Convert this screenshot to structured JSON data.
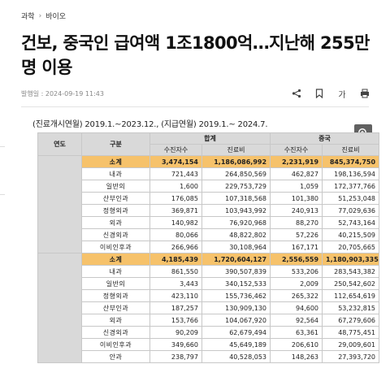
{
  "breadcrumb": {
    "section": "과학",
    "subsection": "바이오"
  },
  "headline": "건보, 중국인 급여액 1조1800억…지난해 255만명 이용",
  "meta": {
    "published": "발행일 : 2024-09-19 11:43"
  },
  "toolbar": {
    "font_size_label": "가"
  },
  "colors": {
    "accent_total_row": "#f6c26b",
    "header_bg": "#d9d9d9"
  },
  "table": {
    "period_caption": "(진료개시연월) 2019.1.~2023.12., (지급연월) 2019.1.~ 2024.7.",
    "headers": {
      "year": "연도",
      "category": "구분",
      "total": "합계",
      "chinese": "중국",
      "patients": "수진자수",
      "cost": "진료비"
    },
    "groups": [
      {
        "year": "",
        "rows": [
          {
            "cat": "소계",
            "total_patients": "3,474,154",
            "total_cost": "1,186,086,992",
            "cn_patients": "2,231,919",
            "cn_cost": "845,374,750",
            "is_total": true
          },
          {
            "cat": "내과",
            "total_patients": "721,443",
            "total_cost": "264,850,569",
            "cn_patients": "462,827",
            "cn_cost": "198,136,594"
          },
          {
            "cat": "일반의",
            "total_patients": "1,600",
            "total_cost": "229,753,729",
            "cn_patients": "1,059",
            "cn_cost": "172,377,766"
          },
          {
            "cat": "산부인과",
            "total_patients": "176,085",
            "total_cost": "107,318,568",
            "cn_patients": "101,380",
            "cn_cost": "51,253,048"
          },
          {
            "cat": "정형외과",
            "total_patients": "369,871",
            "total_cost": "103,943,992",
            "cn_patients": "240,913",
            "cn_cost": "77,029,636"
          },
          {
            "cat": "외과",
            "total_patients": "140,982",
            "total_cost": "76,920,968",
            "cn_patients": "88,270",
            "cn_cost": "52,743,164"
          },
          {
            "cat": "신경외과",
            "total_patients": "80,066",
            "total_cost": "48,822,802",
            "cn_patients": "57,226",
            "cn_cost": "40,215,509"
          },
          {
            "cat": "이비인후과",
            "total_patients": "266,966",
            "total_cost": "30,108,964",
            "cn_patients": "167,171",
            "cn_cost": "20,705,665"
          }
        ]
      },
      {
        "year": "",
        "rows": [
          {
            "cat": "소계",
            "total_patients": "4,185,439",
            "total_cost": "1,720,604,127",
            "cn_patients": "2,556,559",
            "cn_cost": "1,180,903,335",
            "is_total": true
          },
          {
            "cat": "내과",
            "total_patients": "861,550",
            "total_cost": "390,507,839",
            "cn_patients": "533,206",
            "cn_cost": "283,543,382"
          },
          {
            "cat": "일반의",
            "total_patients": "3,443",
            "total_cost": "340,152,533",
            "cn_patients": "2,009",
            "cn_cost": "250,542,602"
          },
          {
            "cat": "정형외과",
            "total_patients": "423,110",
            "total_cost": "155,736,462",
            "cn_patients": "265,322",
            "cn_cost": "112,654,619"
          },
          {
            "cat": "산부인과",
            "total_patients": "187,257",
            "total_cost": "130,909,130",
            "cn_patients": "94,600",
            "cn_cost": "53,232,815"
          },
          {
            "cat": "외과",
            "total_patients": "153,766",
            "total_cost": "104,067,920",
            "cn_patients": "92,564",
            "cn_cost": "67,279,606"
          },
          {
            "cat": "신경외과",
            "total_patients": "90,209",
            "total_cost": "62,679,494",
            "cn_patients": "63,361",
            "cn_cost": "48,775,451"
          },
          {
            "cat": "이비인후과",
            "total_patients": "349,660",
            "total_cost": "45,649,189",
            "cn_patients": "206,610",
            "cn_cost": "29,009,601"
          },
          {
            "cat": "안과",
            "total_patients": "238,797",
            "total_cost": "40,528,053",
            "cn_patients": "148,263",
            "cn_cost": "27,393,720"
          }
        ]
      }
    ]
  }
}
